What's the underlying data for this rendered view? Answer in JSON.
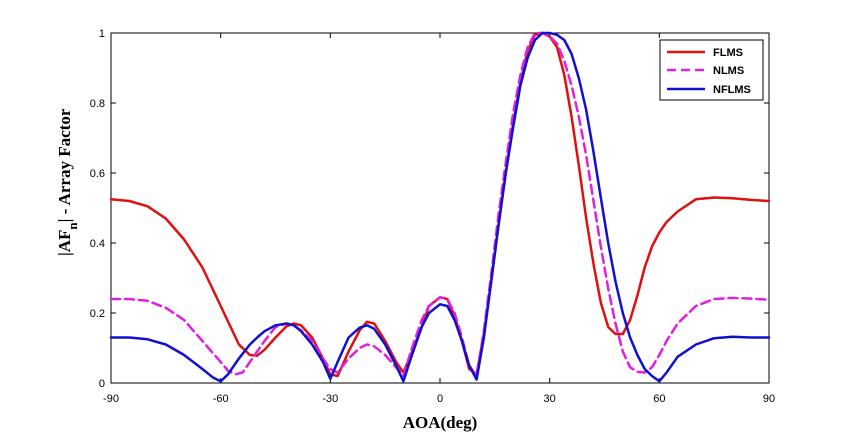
{
  "chart_data": {
    "type": "line",
    "title": "",
    "xlabel": "AOA(deg)",
    "ylabel_main": "|AF",
    "ylabel_sub": "n",
    "ylabel_rest": "| - Array Factor",
    "xlim": [
      -90,
      90
    ],
    "ylim": [
      0,
      1
    ],
    "xticks": [
      -90,
      -60,
      -30,
      0,
      30,
      60,
      90
    ],
    "xtick_labels": [
      "-90",
      "-60",
      "-30",
      "0",
      "30",
      "60",
      "90"
    ],
    "yticks": [
      0,
      0.2,
      0.4,
      0.6,
      0.8,
      1
    ],
    "ytick_labels": [
      "0",
      "0.2",
      "0.4",
      "0.6",
      "0.8",
      "1"
    ],
    "legend_position": "top-right",
    "series": [
      {
        "name": "FLMS",
        "color": "#e01010",
        "dash": "solid",
        "x": [
          -90,
          -85,
          -80,
          -75,
          -70,
          -65,
          -60,
          -55,
          -52,
          -50,
          -48,
          -45,
          -42,
          -40,
          -38,
          -35,
          -32,
          -30,
          -28,
          -25,
          -22,
          -20,
          -18,
          -15,
          -12,
          -10,
          -8,
          -5,
          -3,
          0,
          2,
          4,
          6,
          8,
          10,
          12,
          14,
          16,
          18,
          20,
          22,
          24,
          26,
          28,
          30,
          32,
          34,
          36,
          38,
          40,
          42,
          44,
          46,
          48,
          50,
          52,
          54,
          56,
          58,
          60,
          62,
          65,
          70,
          75,
          80,
          85,
          90
        ],
        "values": [
          0.525,
          0.52,
          0.505,
          0.47,
          0.41,
          0.33,
          0.22,
          0.11,
          0.08,
          0.078,
          0.095,
          0.13,
          0.162,
          0.17,
          0.165,
          0.13,
          0.07,
          0.025,
          0.02,
          0.09,
          0.15,
          0.175,
          0.17,
          0.12,
          0.06,
          0.03,
          0.08,
          0.16,
          0.22,
          0.245,
          0.24,
          0.19,
          0.12,
          0.04,
          0.025,
          0.14,
          0.29,
          0.45,
          0.6,
          0.74,
          0.86,
          0.95,
          0.995,
          1.0,
          0.99,
          0.96,
          0.88,
          0.76,
          0.62,
          0.47,
          0.34,
          0.23,
          0.16,
          0.14,
          0.14,
          0.18,
          0.25,
          0.33,
          0.39,
          0.43,
          0.46,
          0.49,
          0.525,
          0.53,
          0.528,
          0.523,
          0.52
        ]
      },
      {
        "name": "NLMS",
        "color": "#e020e0",
        "dash": "dashed",
        "x": [
          -90,
          -85,
          -80,
          -75,
          -70,
          -65,
          -60,
          -58,
          -56,
          -54,
          -50,
          -48,
          -45,
          -42,
          -40,
          -38,
          -35,
          -32,
          -30,
          -28,
          -25,
          -22,
          -20,
          -18,
          -15,
          -12,
          -10,
          -8,
          -5,
          -3,
          0,
          2,
          4,
          6,
          8,
          10,
          12,
          14,
          16,
          18,
          20,
          22,
          24,
          26,
          28,
          30,
          32,
          34,
          36,
          38,
          40,
          42,
          44,
          46,
          48,
          50,
          52,
          54,
          56,
          58,
          60,
          62,
          65,
          70,
          75,
          80,
          85,
          90
        ],
        "values": [
          0.24,
          0.24,
          0.235,
          0.215,
          0.18,
          0.12,
          0.06,
          0.035,
          0.025,
          0.03,
          0.09,
          0.12,
          0.16,
          0.17,
          0.165,
          0.15,
          0.12,
          0.07,
          0.04,
          0.03,
          0.07,
          0.1,
          0.11,
          0.105,
          0.08,
          0.045,
          0.02,
          0.09,
          0.18,
          0.22,
          0.245,
          0.24,
          0.2,
          0.13,
          0.05,
          0.02,
          0.15,
          0.31,
          0.48,
          0.63,
          0.77,
          0.88,
          0.96,
          1.0,
          1.0,
          0.99,
          0.97,
          0.92,
          0.85,
          0.76,
          0.65,
          0.52,
          0.39,
          0.27,
          0.17,
          0.09,
          0.045,
          0.032,
          0.03,
          0.045,
          0.08,
          0.12,
          0.17,
          0.22,
          0.24,
          0.243,
          0.241,
          0.238
        ]
      },
      {
        "name": "NFLMS",
        "color": "#1010d0",
        "dash": "solid",
        "x": [
          -90,
          -85,
          -80,
          -75,
          -70,
          -65,
          -62,
          -60,
          -58,
          -55,
          -52,
          -50,
          -48,
          -45,
          -42,
          -40,
          -38,
          -35,
          -32,
          -30,
          -28,
          -25,
          -22,
          -20,
          -18,
          -15,
          -12,
          -10,
          -8,
          -5,
          -3,
          0,
          2,
          4,
          6,
          8,
          10,
          12,
          14,
          16,
          18,
          20,
          22,
          24,
          26,
          28,
          30,
          32,
          34,
          36,
          38,
          40,
          42,
          44,
          46,
          48,
          50,
          52,
          54,
          56,
          58,
          60,
          62,
          65,
          70,
          75,
          80,
          85,
          90
        ],
        "values": [
          0.13,
          0.13,
          0.125,
          0.11,
          0.08,
          0.04,
          0.015,
          0.005,
          0.025,
          0.07,
          0.11,
          0.13,
          0.148,
          0.165,
          0.17,
          0.165,
          0.148,
          0.11,
          0.06,
          0.012,
          0.06,
          0.13,
          0.158,
          0.165,
          0.155,
          0.11,
          0.05,
          0.005,
          0.07,
          0.16,
          0.2,
          0.225,
          0.22,
          0.18,
          0.12,
          0.05,
          0.01,
          0.13,
          0.29,
          0.45,
          0.6,
          0.73,
          0.85,
          0.93,
          0.98,
          1.0,
          1.0,
          0.995,
          0.98,
          0.94,
          0.87,
          0.78,
          0.66,
          0.53,
          0.4,
          0.29,
          0.2,
          0.13,
          0.08,
          0.04,
          0.02,
          0.005,
          0.03,
          0.075,
          0.11,
          0.128,
          0.132,
          0.13,
          0.13
        ]
      }
    ]
  }
}
